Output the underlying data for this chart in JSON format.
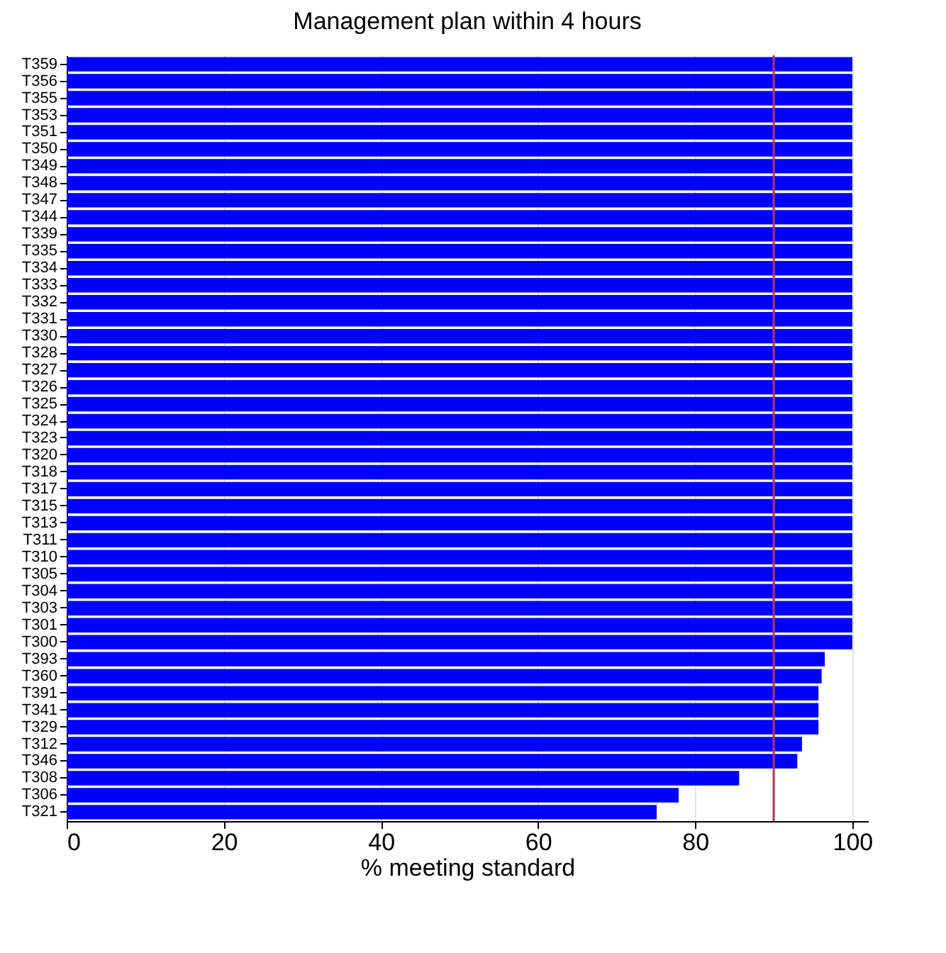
{
  "chart_data": {
    "type": "bar",
    "orientation": "horizontal",
    "title": "Management plan within 4 hours",
    "xlabel": "% meeting standard",
    "categories": [
      "T359",
      "T356",
      "T355",
      "T353",
      "T351",
      "T350",
      "T349",
      "T348",
      "T347",
      "T344",
      "T339",
      "T335",
      "T334",
      "T333",
      "T332",
      "T331",
      "T330",
      "T328",
      "T327",
      "T326",
      "T325",
      "T324",
      "T323",
      "T320",
      "T318",
      "T317",
      "T315",
      "T313",
      "T311",
      "T310",
      "T305",
      "T304",
      "T303",
      "T301",
      "T300",
      "T393",
      "T360",
      "T391",
      "T341",
      "T329",
      "T312",
      "T346",
      "T308",
      "T306",
      "T321"
    ],
    "values": [
      100,
      100,
      100,
      100,
      100,
      100,
      100,
      100,
      100,
      100,
      100,
      100,
      100,
      100,
      100,
      100,
      100,
      100,
      100,
      100,
      100,
      100,
      100,
      100,
      100,
      100,
      100,
      100,
      100,
      100,
      100,
      100,
      100,
      100,
      100,
      96.5,
      96.1,
      95.7,
      95.7,
      95.7,
      93.6,
      93.0,
      85.6,
      77.9,
      75.1
    ],
    "color": "#0000ff",
    "xlim": [
      0,
      102
    ],
    "xticks": [
      0,
      20,
      40,
      60,
      80,
      100
    ],
    "grid": "x",
    "ref_lines": [
      {
        "axis": "x",
        "value": 90,
        "color": "#c0304a"
      }
    ]
  }
}
